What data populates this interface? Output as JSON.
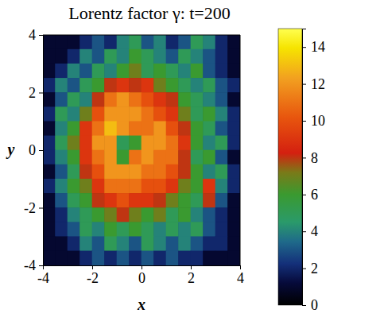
{
  "chart_data": {
    "type": "heatmap",
    "title": "Lorentz factor γ: t=200",
    "x_label": "x",
    "y_label": "y",
    "x": [
      -3.75,
      -3.25,
      -2.75,
      -2.25,
      -1.75,
      -1.25,
      -0.75,
      -0.25,
      0.25,
      0.75,
      1.25,
      1.75,
      2.25,
      2.75,
      3.25,
      3.75
    ],
    "y": [
      3.75,
      3.25,
      2.75,
      2.25,
      1.75,
      1.25,
      0.75,
      0.25,
      -0.25,
      -0.75,
      -1.25,
      -1.75,
      -2.25,
      -2.75,
      -3.25,
      -3.75
    ],
    "cells": [
      [
        1,
        1,
        1,
        2,
        3,
        2,
        4,
        5,
        3,
        4,
        2,
        3,
        5,
        4,
        2,
        1
      ],
      [
        1,
        1,
        2,
        4,
        3,
        5,
        4,
        6,
        5,
        4,
        3,
        5,
        4,
        3,
        2,
        1
      ],
      [
        1,
        2,
        4,
        3,
        5,
        4,
        6,
        7,
        5,
        6,
        5,
        4,
        6,
        3,
        2,
        1
      ],
      [
        2,
        4,
        3,
        5,
        6,
        8,
        9,
        8,
        9,
        7,
        6,
        5,
        4,
        5,
        3,
        2
      ],
      [
        1,
        3,
        5,
        4,
        8,
        11,
        12,
        11,
        10,
        9,
        8,
        6,
        5,
        4,
        3,
        1
      ],
      [
        2,
        5,
        4,
        7,
        10,
        12,
        12,
        12,
        11,
        10,
        9,
        7,
        5,
        6,
        4,
        2
      ],
      [
        1,
        4,
        6,
        9,
        11,
        13,
        12,
        11,
        11,
        12,
        10,
        8,
        6,
        5,
        3,
        2
      ],
      [
        2,
        5,
        7,
        9,
        12,
        12,
        5,
        6,
        12,
        12,
        11,
        9,
        6,
        4,
        5,
        2
      ],
      [
        2,
        4,
        6,
        9,
        11,
        12,
        6,
        11,
        12,
        11,
        11,
        8,
        5,
        6,
        3,
        1
      ],
      [
        1,
        3,
        5,
        8,
        10,
        12,
        12,
        12,
        11,
        11,
        10,
        8,
        6,
        4,
        5,
        2
      ],
      [
        2,
        4,
        6,
        7,
        9,
        11,
        11,
        11,
        10,
        10,
        9,
        7,
        6,
        9,
        4,
        2
      ],
      [
        1,
        3,
        5,
        6,
        8,
        9,
        10,
        9,
        9,
        8,
        7,
        6,
        5,
        8,
        3,
        1
      ],
      [
        1,
        2,
        4,
        5,
        6,
        7,
        8,
        7,
        6,
        7,
        5,
        6,
        4,
        3,
        2,
        1
      ],
      [
        1,
        2,
        3,
        5,
        4,
        6,
        5,
        6,
        5,
        4,
        5,
        4,
        5,
        3,
        2,
        1
      ],
      [
        1,
        1,
        2,
        4,
        3,
        5,
        4,
        3,
        5,
        4,
        3,
        4,
        3,
        2,
        2,
        1
      ],
      [
        1,
        1,
        1,
        2,
        3,
        2,
        3,
        2,
        3,
        2,
        3,
        2,
        2,
        1,
        1,
        1
      ]
    ],
    "xlim": [
      -4,
      4
    ],
    "ylim": [
      -4,
      4
    ],
    "xticks": [
      -4,
      -2,
      0,
      2,
      4
    ],
    "yticks": [
      -4,
      -2,
      0,
      2,
      4
    ],
    "colorbar_range": [
      0,
      15
    ],
    "colorbar_ticks": [
      0,
      2,
      4,
      6,
      8,
      10,
      12,
      14
    ]
  }
}
